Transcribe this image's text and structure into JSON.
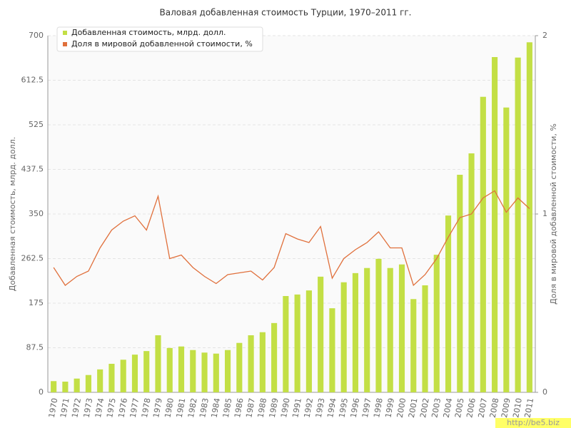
{
  "chart_data": {
    "type": "bar_line",
    "title": "Валовая добавленная стоимость Турции, 1970–2011 гг.",
    "y_label": "Добавленная стоимость, млрд. долл.",
    "y2_label": "Доля в мировой добавленной стоимости, %",
    "watermark": "http://be5.biz",
    "categories": [
      "1970",
      "1971",
      "1972",
      "1973",
      "1974",
      "1975",
      "1976",
      "1977",
      "1978",
      "1979",
      "1980",
      "1981",
      "1982",
      "1983",
      "1984",
      "1985",
      "1986",
      "1987",
      "1988",
      "1989",
      "1990",
      "1991",
      "1992",
      "1993",
      "1994",
      "1995",
      "1996",
      "1997",
      "1998",
      "1999",
      "2000",
      "2001",
      "2002",
      "2003",
      "2004",
      "2005",
      "2006",
      "2007",
      "2008",
      "2009",
      "2010",
      "2011"
    ],
    "series": [
      {
        "name": "Добавленная стоимость, млрд. долл.",
        "type": "bar",
        "color": "#c3df45",
        "values": [
          22,
          21,
          27,
          34,
          45,
          56,
          64,
          74,
          81,
          112,
          87,
          90,
          83,
          78,
          76,
          83,
          97,
          112,
          118,
          136,
          189,
          192,
          200,
          227,
          165,
          216,
          234,
          244,
          262,
          244,
          251,
          183,
          210,
          270,
          347,
          427,
          469,
          580,
          658,
          559,
          657,
          687
        ]
      },
      {
        "name": "Доля в мировой добавленной стоимости, %",
        "type": "line",
        "axis": "y2",
        "color": "#e0703c",
        "values": [
          0.7,
          0.6,
          0.65,
          0.68,
          0.81,
          0.91,
          0.96,
          0.99,
          0.91,
          1.1,
          0.75,
          0.77,
          0.7,
          0.65,
          0.61,
          0.66,
          0.67,
          0.68,
          0.63,
          0.7,
          0.89,
          0.86,
          0.84,
          0.93,
          0.64,
          0.75,
          0.8,
          0.84,
          0.9,
          0.81,
          0.81,
          0.6,
          0.66,
          0.75,
          0.87,
          0.98,
          1.0,
          1.09,
          1.13,
          1.01,
          1.09,
          1.03
        ]
      }
    ],
    "ylim": [
      0,
      700
    ],
    "yticks": [
      0,
      87.5,
      175,
      262.5,
      350,
      437.5,
      525,
      612.5,
      700
    ],
    "y2lim": [
      0,
      2
    ],
    "y2ticks": [
      0,
      1,
      2
    ],
    "grid": true
  }
}
